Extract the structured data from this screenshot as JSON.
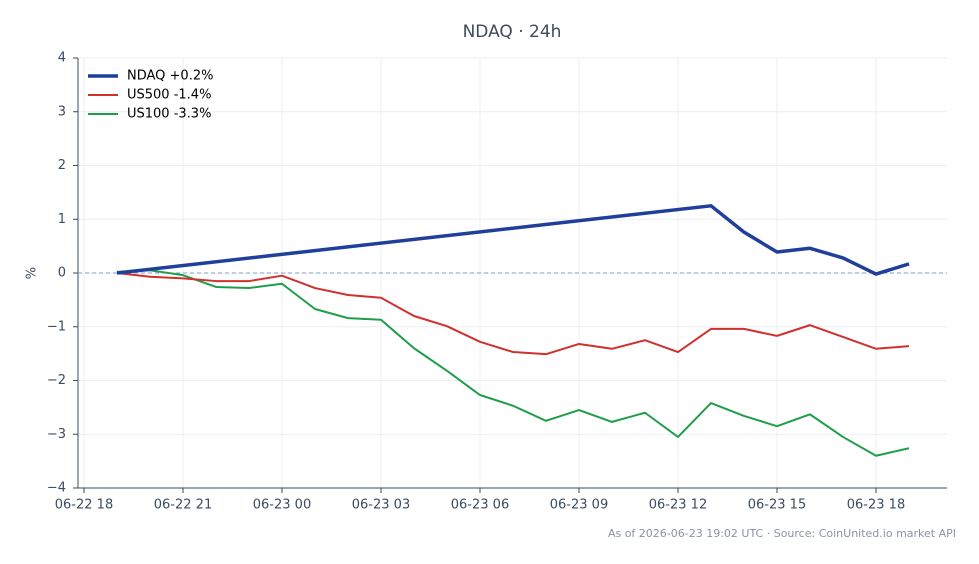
{
  "chart_data": {
    "type": "line",
    "title": "NDAQ · 24h",
    "y_label": "%",
    "footer": "As of 2026-06-23 19:02 UTC · Source: CoinUnited.io market API",
    "x": [
      "06-22 19",
      "06-22 20",
      "06-22 21",
      "06-22 22",
      "06-22 23",
      "06-23 00",
      "06-23 01",
      "06-23 02",
      "06-23 03",
      "06-23 04",
      "06-23 05",
      "06-23 06",
      "06-23 07",
      "06-23 08",
      "06-23 09",
      "06-23 10",
      "06-23 11",
      "06-23 12",
      "06-23 13",
      "06-23 14",
      "06-23 15",
      "06-23 16",
      "06-23 17",
      "06-23 18",
      "06-23 19"
    ],
    "series": [
      {
        "name": "NDAQ +0.2%",
        "color": "#1f3f9a",
        "width": 3.5,
        "x": [
          "06-22 19",
          "06-23 13",
          "06-23 14",
          "06-23 15",
          "06-23 16",
          "06-23 17",
          "06-23 18",
          "06-23 19"
        ],
        "values": [
          0.0,
          1.25,
          0.76,
          0.39,
          0.46,
          0.28,
          -0.02,
          0.17
        ]
      },
      {
        "name": "US500 -1.4%",
        "color": "#d0312d",
        "width": 2,
        "values": [
          0.0,
          -0.07,
          -0.1,
          -0.15,
          -0.15,
          -0.05,
          -0.28,
          -0.41,
          -0.46,
          -0.8,
          -0.99,
          -1.28,
          -1.47,
          -1.51,
          -1.32,
          -1.41,
          -1.25,
          -1.47,
          -1.04,
          -1.04,
          -1.17,
          -0.97,
          -1.19,
          -1.41,
          -1.36
        ]
      },
      {
        "name": "US100 -3.3%",
        "color": "#1f9e4a",
        "width": 2,
        "values": [
          0.02,
          0.05,
          -0.04,
          -0.26,
          -0.28,
          -0.2,
          -0.67,
          -0.84,
          -0.87,
          -1.4,
          -1.82,
          -2.27,
          -2.47,
          -2.75,
          -2.55,
          -2.77,
          -2.6,
          -3.05,
          -2.42,
          -2.66,
          -2.85,
          -2.63,
          -3.05,
          -3.4,
          -3.26
        ]
      }
    ],
    "xlim": [
      "06-22 18",
      "06-23 20"
    ],
    "xticks": [
      "06-22 18",
      "06-22 21",
      "06-23 00",
      "06-23 03",
      "06-23 06",
      "06-23 09",
      "06-23 12",
      "06-23 15",
      "06-23 18"
    ],
    "ylim": [
      -4,
      4
    ],
    "yticks": [
      {
        "value": -4,
        "label": "−4"
      },
      {
        "value": -3,
        "label": "−3"
      },
      {
        "value": -2,
        "label": "−2"
      },
      {
        "value": -1,
        "label": "−1"
      },
      0,
      1,
      2,
      3,
      4
    ],
    "grid": true,
    "zero_line": true,
    "legend": "upper-left"
  }
}
